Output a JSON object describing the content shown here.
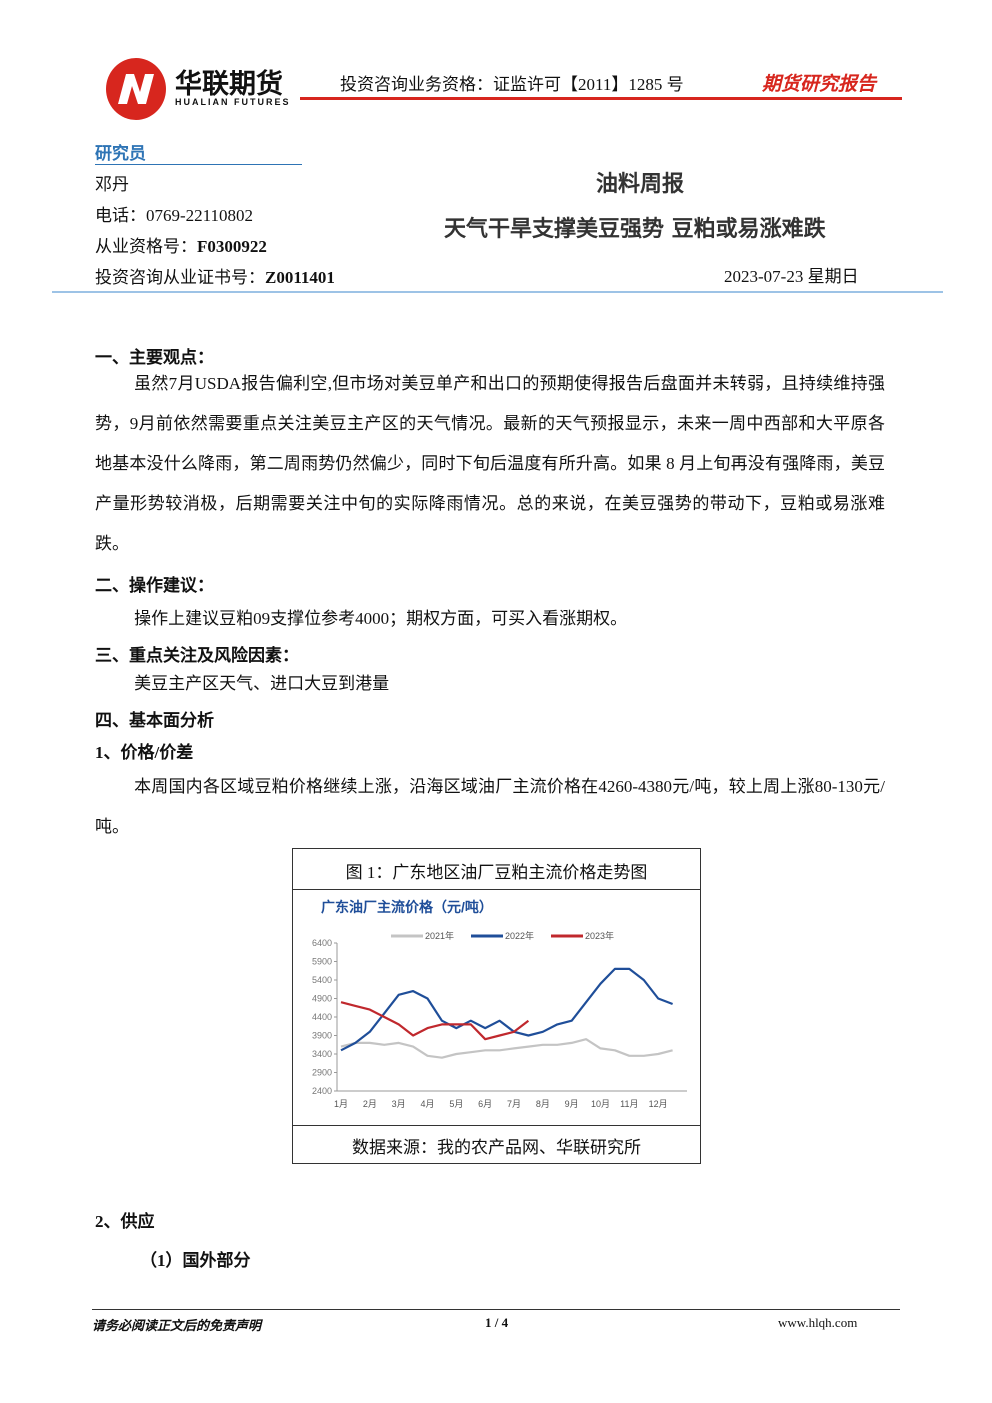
{
  "header": {
    "company": "华联期货",
    "company_en": "HUALIAN FUTURES",
    "license": "投资咨询业务资格：证监许可【2011】1285 号",
    "report_type": "期货研究报告"
  },
  "researcher": {
    "heading": "研究员",
    "name": "邓丹",
    "phone": "电话：0769-22110802",
    "qualification_label": "从业资格号：",
    "qualification": "F0300922",
    "cert_label": "投资咨询从业证书号：",
    "cert": "Z0011401"
  },
  "report": {
    "category": "油料周报",
    "title": "天气干旱支撑美豆强势 豆粕或易涨难跌",
    "date": "2023-07-23 星期日"
  },
  "sections": [
    {
      "heading": "一、主要观点：",
      "paragraphs": [
        "虽然7月USDA报告偏利空,但市场对美豆单产和出口的预期使得报告后盘面并未转弱，且持续维持强势，9月前依然需要重点关注美豆主产区的天气情况。最新的天气预报显示，未来一周中西部和大平原各地基本没什么降雨，第二周雨势仍然偏少，同时下旬后温度有所升高。如果 8 月上旬再没有强降雨，美豆产量形势较消极，后期需要关注中旬的实际降雨情况。总的来说，在美豆强势的带动下，豆粕或易涨难跌。"
      ]
    },
    {
      "heading": "二、操作建议：",
      "paragraphs": [
        "操作上建议豆粕09支撑位参考4000；期权方面，可买入看涨期权。"
      ]
    },
    {
      "heading": "三、重点关注及风险因素：",
      "paragraphs": [
        "美豆主产区天气、进口大豆到港量"
      ]
    },
    {
      "heading": "四、基本面分析"
    },
    {
      "heading": "1、价格/价差",
      "paragraphs": [
        "本周国内各区域豆粕价格继续上涨，沿海区域油厂主流价格在4260-4380元/吨，较上周上涨80-130元/吨。"
      ]
    },
    {
      "heading": "2、供应"
    },
    {
      "heading": "（1）国外部分"
    }
  ],
  "figure": {
    "caption": "图 1：广东地区油厂豆粕主流价格走势图",
    "source": "数据来源：我的农产品网、华联研究所"
  },
  "chart_data": {
    "type": "line",
    "title": "广东油厂主流价格（元/吨）",
    "categories": [
      "1月",
      null,
      "2月",
      null,
      "3月",
      null,
      "4月",
      null,
      "5月",
      null,
      "6月",
      null,
      "7月",
      null,
      "8月",
      null,
      "9月",
      null,
      "10月",
      null,
      "11月",
      null,
      "12月",
      null
    ],
    "series": [
      {
        "name": "2021年",
        "color": "#c4c4c4",
        "values": [
          3600,
          3700,
          3700,
          3650,
          3700,
          3600,
          3350,
          3300,
          3400,
          3450,
          3500,
          3500,
          3550,
          3600,
          3650,
          3650,
          3700,
          3800,
          3550,
          3500,
          3350,
          3350,
          3400,
          3500
        ]
      },
      {
        "name": "2022年",
        "color": "#1f4e99",
        "values": [
          3500,
          3700,
          4000,
          4500,
          5000,
          5100,
          4900,
          4300,
          4100,
          4300,
          4100,
          4300,
          4000,
          3900,
          4000,
          4200,
          4300,
          4800,
          5300,
          5700,
          5700,
          5400,
          4900,
          4750
        ]
      },
      {
        "name": "2023年",
        "color": "#c0282d",
        "values": [
          4800,
          4700,
          4600,
          4400,
          4200,
          3900,
          4100,
          4200,
          4200,
          4200,
          3800,
          3900,
          4000,
          4300,
          null,
          null,
          null,
          null,
          null,
          null,
          null,
          null,
          null,
          null
        ]
      }
    ],
    "ylim": [
      2400,
      6400
    ],
    "yticks": [
      2400,
      2900,
      3400,
      3900,
      4400,
      4900,
      5400,
      5900,
      6400
    ],
    "grid": false
  },
  "footer": {
    "disclaimer": "请务必阅读正文后的免责声明",
    "page": "1 / 4",
    "website": "www.hlqh.com"
  }
}
